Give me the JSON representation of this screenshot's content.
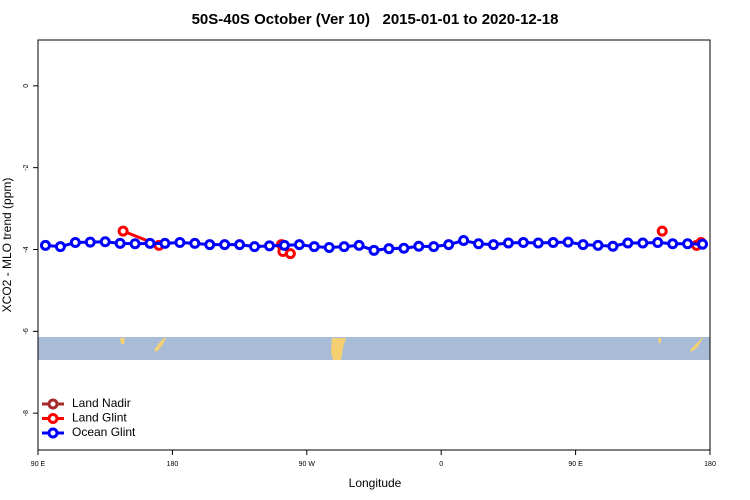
{
  "chart_data": {
    "type": "line",
    "title": "50S-40S October (Ver 10)   2015-01-01 to 2020-12-18",
    "xlabel": "Longitude",
    "ylabel": "XCO2 - MLO trend (ppm)",
    "xlim": [
      90,
      540
    ],
    "ylim": [
      -8.9,
      1.12
    ],
    "xticks": [
      {
        "value": 90,
        "label": "90 E"
      },
      180,
      {
        "value": 270,
        "label": "90 W"
      },
      0,
      {
        "value": 450,
        "label": "90 E"
      },
      180
    ],
    "yticks": [
      0,
      -2,
      -4,
      -6,
      -8
    ],
    "legend": "bottomleft",
    "series": [
      {
        "name": "Land Nadir",
        "color": "#a52a2a",
        "x": [],
        "values": []
      },
      {
        "name": "Land Glint",
        "color": "#ff0000",
        "x": [
          147,
          171,
          null,
          253,
          254,
          259,
          null,
          508,
          null,
          531,
          534
        ],
        "values": [
          -3.55,
          -3.9,
          null,
          -3.88,
          -4.05,
          -4.1,
          null,
          -3.55,
          null,
          -3.9,
          -3.83
        ]
      },
      {
        "name": "Ocean Glint",
        "color": "#0000ff",
        "x": [
          95,
          105,
          115,
          125,
          135,
          145,
          155,
          165,
          175,
          185,
          195,
          205,
          215,
          225,
          235,
          245,
          255,
          265,
          275,
          285,
          295,
          305,
          315,
          325,
          335,
          345,
          355,
          365,
          375,
          385,
          395,
          405,
          415,
          425,
          435,
          445,
          455,
          465,
          475,
          485,
          495,
          505,
          515,
          525,
          535
        ],
        "values": [
          -3.9,
          -3.93,
          -3.83,
          -3.82,
          -3.81,
          -3.85,
          -3.86,
          -3.85,
          -3.85,
          -3.83,
          -3.85,
          -3.88,
          -3.88,
          -3.88,
          -3.93,
          -3.91,
          -3.9,
          -3.88,
          -3.93,
          -3.95,
          -3.93,
          -3.9,
          -4.02,
          -3.98,
          -3.97,
          -3.92,
          -3.93,
          -3.88,
          -3.78,
          -3.86,
          -3.88,
          -3.84,
          -3.83,
          -3.84,
          -3.83,
          -3.82,
          -3.88,
          -3.9,
          -3.92,
          -3.84,
          -3.84,
          -3.83,
          -3.86,
          -3.86,
          -3.87
        ]
      }
    ]
  }
}
